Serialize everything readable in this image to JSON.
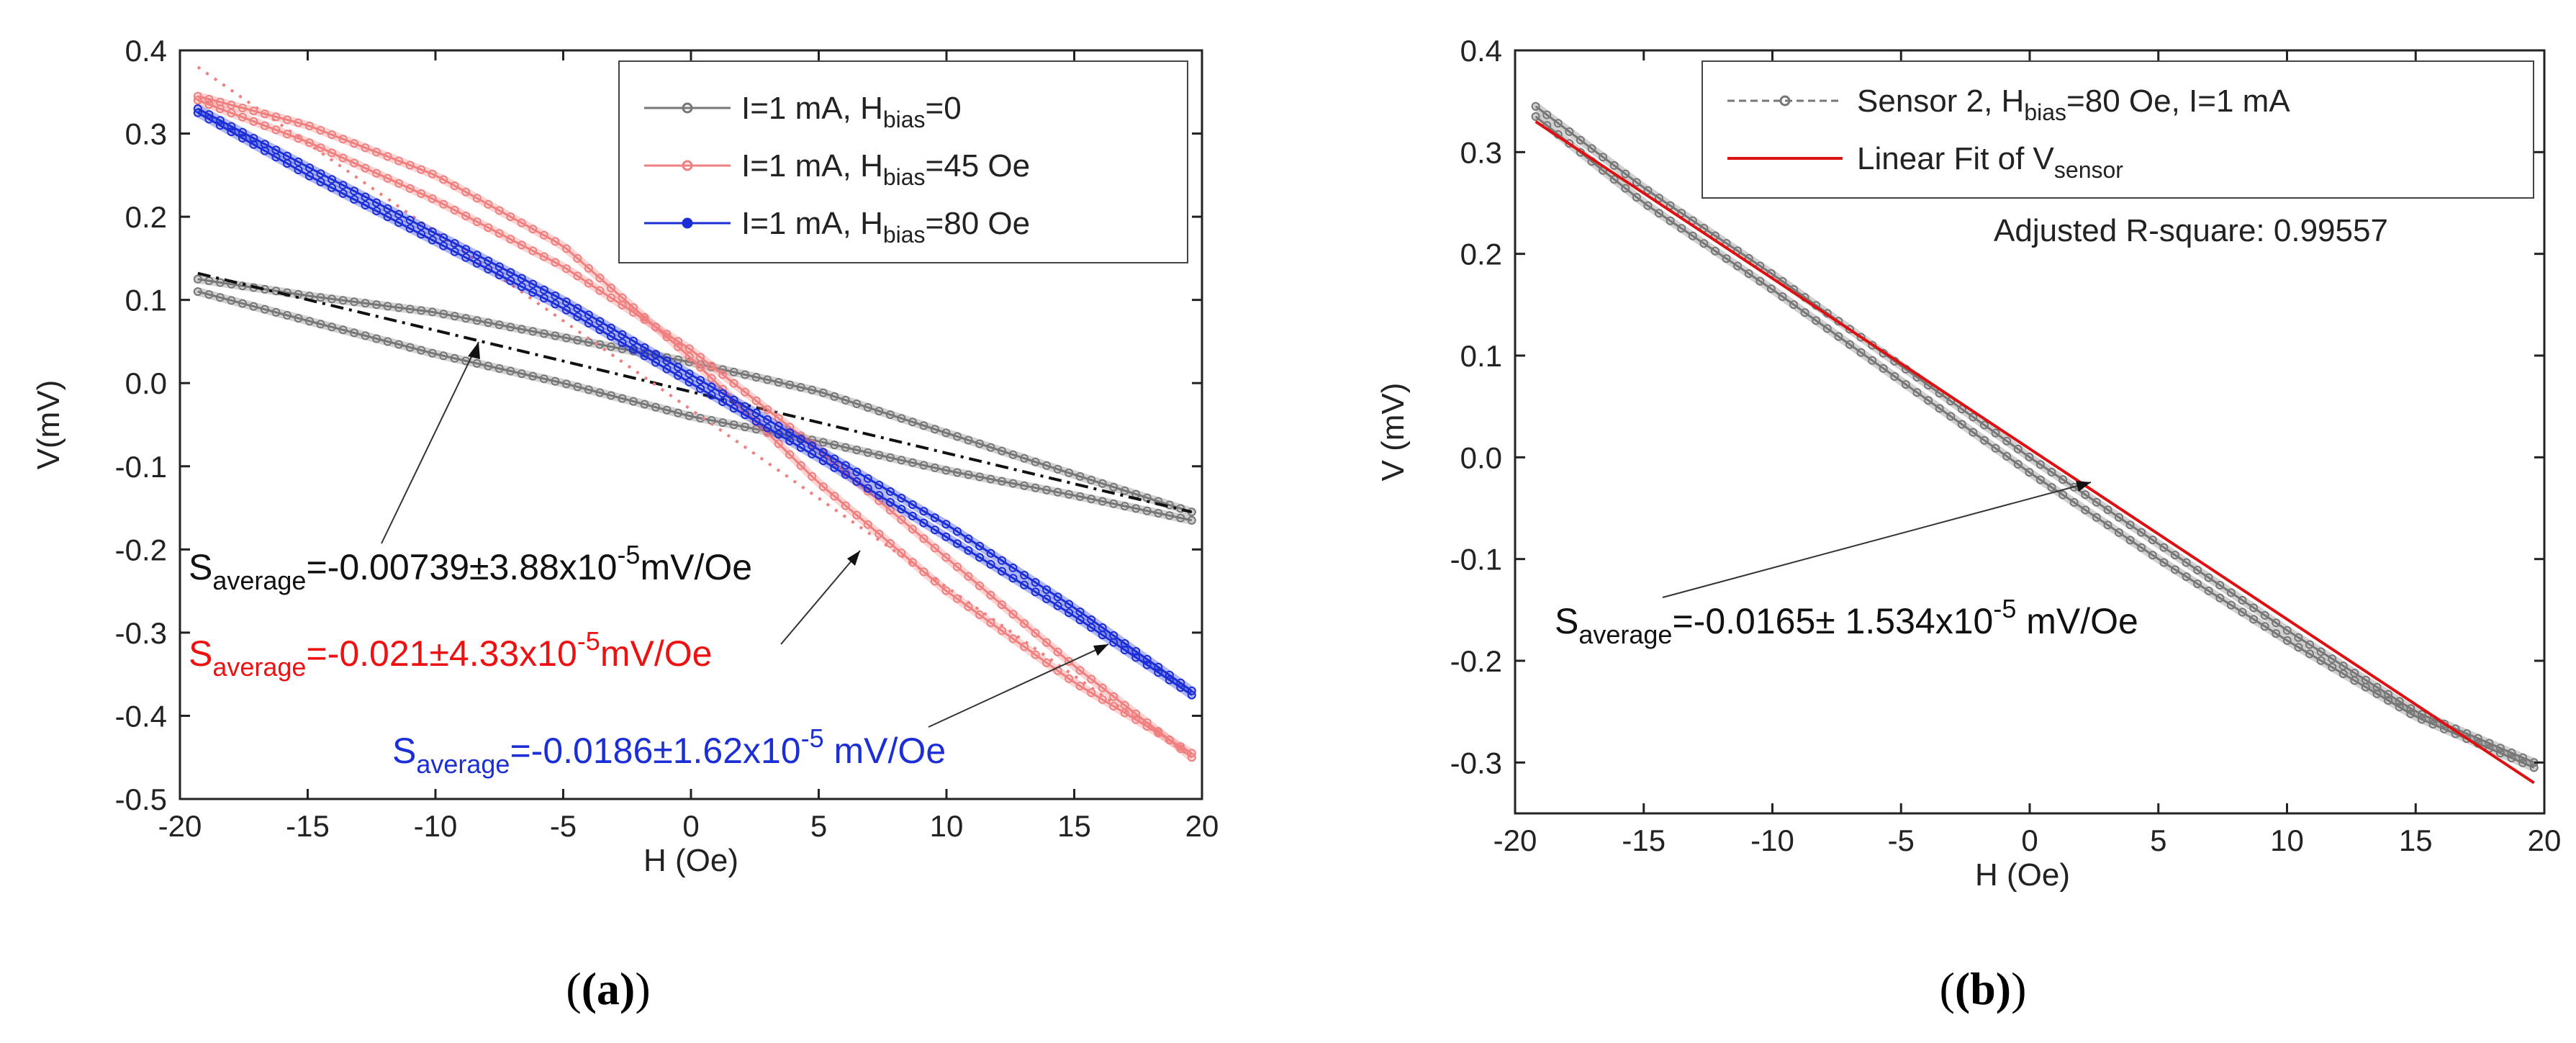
{
  "chart_data": [
    {
      "panel_label": "(a)",
      "type": "scatter",
      "xlabel": "H (Oe)",
      "ylabel": "V(mV)",
      "xlim": [
        -20,
        20
      ],
      "ylim": [
        -0.5,
        0.4
      ],
      "x_ticks": [
        -20,
        -15,
        -10,
        -5,
        0,
        5,
        10,
        15,
        20
      ],
      "y_ticks": [
        0.4,
        0.3,
        0.2,
        0.1,
        0.0,
        -0.1,
        -0.2,
        -0.3,
        -0.4,
        -0.5
      ],
      "x_tick_labels": [
        "-20",
        "-15",
        "-10",
        "-5",
        "0",
        "5",
        "10",
        "15",
        "20"
      ],
      "y_tick_labels": [
        "0.4",
        "0.3",
        "0.2",
        "0.1",
        "0.0",
        "-0.1",
        "-0.2",
        "-0.3",
        "-0.4",
        "-0.5"
      ],
      "legend_position": "top-right",
      "series": [
        {
          "color": "#777777",
          "legend": {
            "pre": "I=1 mA, H",
            "sub": "bias",
            "post": "=0"
          },
          "branch_up": {
            "x": [
              -19.3,
              -15,
              -10,
              -5,
              0,
              5,
              10,
              15,
              19.6
            ],
            "y": [
              0.11,
              0.075,
              0.035,
              0.0,
              -0.04,
              -0.07,
              -0.105,
              -0.135,
              -0.165
            ]
          },
          "branch_down": {
            "x": [
              -19.3,
              -15,
              -10,
              -5,
              0,
              5,
              10,
              15,
              19.6
            ],
            "y": [
              0.125,
              0.105,
              0.085,
              0.055,
              0.025,
              -0.01,
              -0.06,
              -0.11,
              -0.155
            ]
          },
          "fit": {
            "x": [
              -19.3,
              19.6
            ],
            "y": [
              0.132,
              -0.155
            ]
          }
        },
        {
          "color": "#f08080",
          "legend": {
            "pre": "I=1 mA, H",
            "sub": "bias",
            "post": "=45 Oe"
          },
          "branch_up": {
            "x": [
              -19.3,
              -15,
              -10,
              -5,
              0,
              5,
              10,
              15,
              19.6
            ],
            "y": [
              0.34,
              0.29,
              0.22,
              0.14,
              0.04,
              -0.08,
              -0.21,
              -0.34,
              -0.45
            ]
          },
          "branch_down": {
            "x": [
              -19.3,
              -15,
              -10,
              -5,
              0,
              5,
              10,
              15,
              19.6
            ],
            "y": [
              0.345,
              0.31,
              0.25,
              0.165,
              0.03,
              -0.12,
              -0.25,
              -0.36,
              -0.445
            ]
          },
          "fit": {
            "x": [
              -19.3,
              19.6
            ],
            "y": [
              0.38,
              -0.45
            ]
          }
        },
        {
          "color": "#1c2fd6",
          "legend": {
            "pre": "I=1 mA, H",
            "sub": "bias",
            "post": "=80 Oe"
          },
          "branch_up": {
            "x": [
              -19.3,
              -15,
              -10,
              -5,
              0,
              5,
              10,
              15,
              19.6
            ],
            "y": [
              0.33,
              0.26,
              0.18,
              0.1,
              0.01,
              -0.08,
              -0.17,
              -0.27,
              -0.37
            ]
          },
          "branch_down": {
            "x": [
              -19.3,
              -15,
              -10,
              -5,
              0,
              5,
              10,
              15,
              19.6
            ],
            "y": [
              0.325,
              0.25,
              0.17,
              0.09,
              0.0,
              -0.09,
              -0.185,
              -0.28,
              -0.375
            ]
          }
        }
      ],
      "annotations": [
        {
          "color": "#111111",
          "pre": "S",
          "sub": "average",
          "post": "=-0.00739±3.88x10",
          "sup": "-5",
          "tail": "mV/Oe"
        },
        {
          "color": "#ee1111",
          "pre": "S",
          "sub": "average",
          "post": "=-0.021±4.33x10",
          "sup": "-5",
          "tail": "mV/Oe"
        },
        {
          "color": "#1c2fd6",
          "pre": "S",
          "sub": "average",
          "post": "=-0.0186±1.62x10",
          "sup": "-5",
          "tail": " mV/Oe"
        }
      ]
    },
    {
      "panel_label": "(b)",
      "type": "scatter",
      "xlabel": "H (Oe)",
      "ylabel": "V (mV)",
      "xlim": [
        -20,
        20
      ],
      "ylim": [
        -0.35,
        0.4
      ],
      "x_ticks": [
        -20,
        -15,
        -10,
        -5,
        0,
        5,
        10,
        15,
        20
      ],
      "y_ticks": [
        0.4,
        0.3,
        0.2,
        0.1,
        0.0,
        -0.1,
        -0.2,
        -0.3
      ],
      "x_tick_labels": [
        "-20",
        "-15",
        "-10",
        "-5",
        "0",
        "5",
        "10",
        "15",
        "20"
      ],
      "y_tick_labels": [
        "0.4",
        "0.3",
        "0.2",
        "0.1",
        "0.0",
        "-0.1",
        "-0.2",
        "-0.3"
      ],
      "legend_position": "top-right",
      "series": [
        {
          "color": "#777777",
          "legend": {
            "pre": "Sensor 2, H",
            "sub": "bias",
            "post": "=80 Oe, I=1 mA"
          },
          "branch_up": {
            "x": [
              -19.2,
              -15,
              -10,
              -5,
              0,
              5,
              10,
              15,
              19.6
            ],
            "y": [
              0.345,
              0.265,
              0.18,
              0.09,
              0.0,
              -0.085,
              -0.17,
              -0.25,
              -0.3
            ]
          },
          "branch_down": {
            "x": [
              -19.2,
              -15,
              -10,
              -5,
              0,
              5,
              10,
              15,
              19.6
            ],
            "y": [
              0.335,
              0.25,
              0.165,
              0.075,
              -0.015,
              -0.1,
              -0.18,
              -0.255,
              -0.305
            ]
          }
        },
        {
          "color": "#dd1111",
          "legend": {
            "pre": "Linear Fit of V",
            "sub": "sensor",
            "post": ""
          },
          "fit": {
            "x": [
              -19.2,
              19.6
            ],
            "y": [
              0.33,
              -0.32
            ]
          }
        }
      ],
      "note": "Adjusted R-square: 0.99557",
      "annotations": [
        {
          "color": "#111111",
          "pre": "S",
          "sub": "average",
          "post": "=-0.0165± 1.534x10",
          "sup": "-5",
          "tail": " mV/Oe"
        }
      ]
    }
  ]
}
